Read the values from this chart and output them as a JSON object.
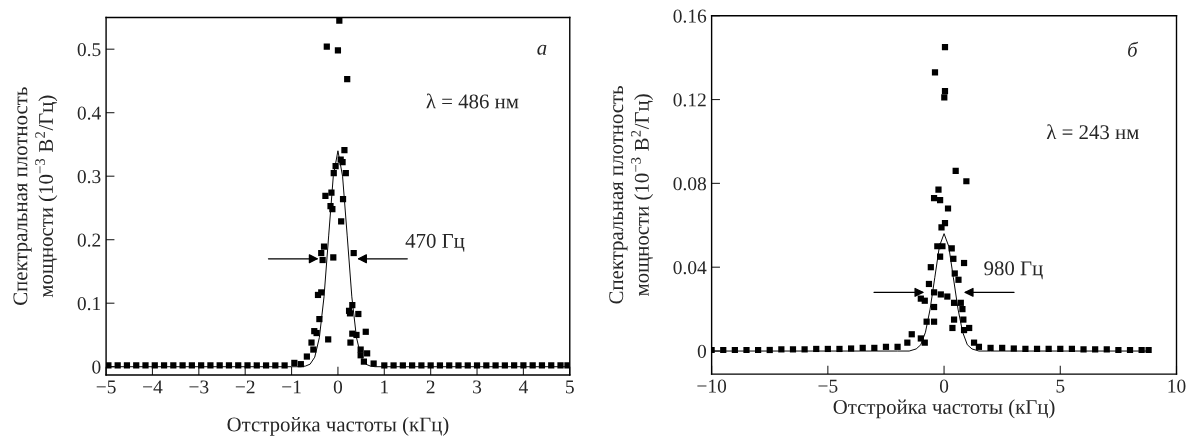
{
  "chart_data": [
    {
      "type": "scatter",
      "xlabel": "Отстройка частоты (кГц)",
      "ylabel": "Спектральная плотность\nмощности (10$^{−3}$ В$^{2}$/Гц)",
      "xlim": [
        -5,
        5
      ],
      "ylim": [
        -0.013,
        0.55
      ],
      "xticks": [
        {
          "value": -5,
          "label": "−5"
        },
        {
          "value": -4,
          "label": "−4"
        },
        {
          "value": -3,
          "label": "−3"
        },
        {
          "value": -2,
          "label": "−2"
        },
        {
          "value": -1,
          "label": "−1"
        },
        0,
        1,
        2,
        3,
        4,
        5
      ],
      "yticks": [
        0,
        0.1,
        0.2,
        0.3,
        0.4,
        0.5
      ],
      "grid": false,
      "legend": false,
      "annotations": [
        "а",
        "λ = 486 нм",
        {
          "text": "470 Гц",
          "x": 0.235,
          "y": 0.17
        }
      ],
      "series": [
        {
          "marker": "square",
          "color": "#000000",
          "x": [
            0.03,
            -0.24,
            0.0,
            0.2,
            0.14,
            0.06,
            0.1,
            -0.05,
            -0.09,
            0.17,
            -0.27,
            -0.14,
            -0.16,
            -0.12,
            0.11,
            0.07,
            -0.3,
            -0.36,
            -0.33,
            -0.1,
            0.34,
            -0.43,
            -0.36,
            -0.4,
            0.31,
            0.24,
            0.26,
            0.44,
            -0.51,
            -0.46,
            -0.21,
            0.31,
            0.27,
            0.4,
            0.6,
            -0.57,
            -0.53,
            0.49,
            0.63,
            0.49,
            -0.67,
            -0.94,
            -0.8,
            0.56,
            0.77,
            -4.95,
            -4.75,
            -4.55,
            -4.35,
            -4.15,
            -3.95,
            -3.75,
            -3.55,
            -3.35,
            -3.15,
            -2.95,
            -2.75,
            -2.55,
            -2.35,
            -2.15,
            -1.95,
            -1.75,
            -1.55,
            -1.35,
            -1.15,
            1.0,
            1.2,
            1.4,
            1.6,
            1.8,
            2.0,
            2.2,
            2.4,
            2.6,
            2.8,
            3.0,
            3.2,
            3.4,
            3.6,
            3.8,
            4.0,
            4.2,
            4.4,
            4.6,
            4.8,
            4.95
          ],
          "values": [
            0.545,
            0.504,
            0.498,
            0.453,
            0.341,
            0.326,
            0.322,
            0.316,
            0.305,
            0.305,
            0.269,
            0.274,
            0.253,
            0.248,
            0.264,
            0.229,
            0.189,
            0.179,
            0.168,
            0.172,
            0.179,
            0.113,
            0.117,
            0.075,
            0.097,
            0.088,
            0.084,
            0.083,
            0.056,
            0.053,
            0.043,
            0.052,
            0.038,
            0.05,
            0.055,
            0.038,
            0.027,
            0.027,
            0.021,
            0.018,
            0.016,
            0.006,
            0.004,
            0.008,
            0.005,
            0.002,
            0.002,
            0.002,
            0.002,
            0.002,
            0.002,
            0.002,
            0.002,
            0.002,
            0.002,
            0.002,
            0.002,
            0.002,
            0.002,
            0.002,
            0.002,
            0.002,
            0.002,
            0.002,
            0.002,
            0.002,
            0.002,
            0.002,
            0.002,
            0.002,
            0.002,
            0.002,
            0.002,
            0.002,
            0.002,
            0.002,
            0.002,
            0.002,
            0.002,
            0.002,
            0.002,
            0.002,
            0.002,
            0.002,
            0.002,
            0.002
          ]
        },
        {
          "type": "line",
          "line_style": "solid",
          "marker": "none",
          "color": "#000000",
          "x": [
            -5,
            -1.2,
            -1.0,
            -0.8,
            -0.7,
            -0.6,
            -0.5,
            -0.4,
            -0.3,
            -0.2,
            -0.1,
            0,
            0.1,
            0.2,
            0.3,
            0.4,
            0.5,
            0.6,
            0.7,
            0.8,
            1.0,
            1.2,
            5
          ],
          "values": [
            0,
            0,
            0,
            0,
            0.001,
            0.004,
            0.015,
            0.046,
            0.11,
            0.206,
            0.3,
            0.34,
            0.3,
            0.206,
            0.11,
            0.046,
            0.015,
            0.004,
            0.001,
            0,
            0,
            0,
            0
          ]
        }
      ]
    },
    {
      "type": "scatter",
      "xlabel": "Отстройка частоты (кГц)",
      "ylabel": "Спектральная плотность\nмощности (10$^{−3}$ В$^{2}$/Гц)",
      "xlim": [
        -10,
        10
      ],
      "ylim": [
        -0.011,
        0.16
      ],
      "xticks": [
        {
          "value": -10,
          "label": "−10"
        },
        {
          "value": -5,
          "label": "−5"
        },
        0,
        5,
        10
      ],
      "yticks": [
        0,
        0.04,
        0.08,
        0.12,
        0.16
      ],
      "grid": false,
      "legend": false,
      "annotations": [
        "б",
        "λ = 243 нм",
        {
          "text": "980 Гц",
          "x": 0.49,
          "y": 0.028
        }
      ],
      "series": [
        {
          "marker": "square",
          "color": "#000000",
          "x": [
            0.04,
            -0.39,
            0.04,
            0.01,
            0.5,
            0.96,
            -0.24,
            -0.43,
            -0.17,
            0.17,
            0.04,
            -0.11,
            -0.29,
            -0.07,
            0.33,
            -0.17,
            0.4,
            0.86,
            -0.57,
            0.46,
            -0.65,
            0.62,
            -0.43,
            -0.14,
            0.14,
            -1.0,
            -0.83,
            -0.43,
            0.43,
            0.72,
            0.79,
            -0.75,
            -0.43,
            0.43,
            0.83,
            1.08,
            0.36,
            0.86,
            -1.39,
            -1.0,
            -1.58,
            -0.83,
            1.29,
            -10,
            -9.5,
            -9,
            -8.5,
            -8,
            -7.5,
            -7,
            -6.5,
            -6,
            -5.5,
            -5,
            -4.5,
            -4,
            -3.5,
            -3,
            -2.5,
            -2,
            1.5,
            2,
            2.5,
            3,
            3.5,
            4,
            4.5,
            5,
            5.5,
            6,
            6.5,
            7,
            7.5,
            8,
            8.5,
            8.8
          ],
          "values": [
            0.145,
            0.133,
            0.124,
            0.121,
            0.086,
            0.081,
            0.077,
            0.073,
            0.072,
            0.068,
            0.061,
            0.059,
            0.05,
            0.05,
            0.049,
            0.045,
            0.044,
            0.042,
            0.04,
            0.037,
            0.032,
            0.034,
            0.028,
            0.027,
            0.026,
            0.025,
            0.024,
            0.021,
            0.023,
            0.023,
            0.02,
            0.014,
            0.014,
            0.015,
            0.015,
            0.011,
            0.011,
            0.01,
            0.008,
            0.006,
            0.004,
            0.004,
            0.004,
            0.0005,
            0.0005,
            0.0005,
            0.0005,
            0.0005,
            0.0005,
            0.0008,
            0.0008,
            0.0008,
            0.001,
            0.001,
            0.001,
            0.0012,
            0.0015,
            0.0015,
            0.002,
            0.002,
            0.002,
            0.0015,
            0.0015,
            0.0012,
            0.001,
            0.001,
            0.001,
            0.001,
            0.001,
            0.0008,
            0.0008,
            0.0008,
            0.0005,
            0.0005,
            0.0005,
            0.0005
          ]
        },
        {
          "type": "line",
          "line_style": "solid",
          "marker": "none",
          "color": "#000000",
          "x": [
            -10,
            -2,
            -1.5,
            -1.2,
            -1.0,
            -0.8,
            -0.6,
            -0.4,
            -0.2,
            0,
            0.2,
            0.4,
            0.6,
            0.8,
            1.0,
            1.2,
            1.5,
            2,
            8.8
          ],
          "values": [
            0,
            0,
            0,
            0.001,
            0.003,
            0.009,
            0.02,
            0.035,
            0.05,
            0.056,
            0.05,
            0.035,
            0.02,
            0.009,
            0.003,
            0.001,
            0,
            0,
            0
          ]
        }
      ]
    }
  ]
}
